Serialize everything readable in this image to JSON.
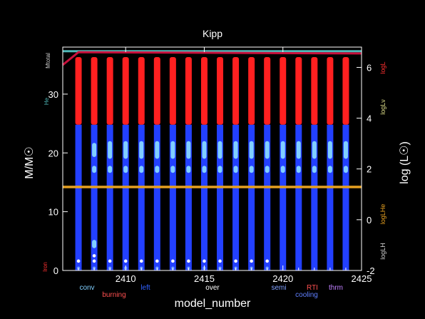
{
  "chart_data": {
    "type": "scatter",
    "title": "Kipp",
    "xlabel": "model_number",
    "ylabel_left": "M/M☉",
    "ylabel_right": "log (L☉)",
    "xlim": [
      2406,
      2425
    ],
    "ylim_left": [
      0,
      38
    ],
    "ylim_right": [
      -2,
      6.8
    ],
    "x_ticks": [
      2410,
      2415,
      2420,
      2425
    ],
    "y_ticks_left": [
      0,
      10,
      20,
      30
    ],
    "y_ticks_right": [
      -2,
      0,
      2,
      4,
      6
    ],
    "grid": false,
    "models": [
      2407,
      2408,
      2409,
      2410,
      2411,
      2412,
      2413,
      2414,
      2415,
      2416,
      2417,
      2418,
      2419,
      2420,
      2421,
      2422,
      2423,
      2424
    ],
    "mass_total": 37.3,
    "m_he_core": 36.8,
    "m_star_top": 36.3,
    "burning_bottom": 24.8,
    "conv_zone": [
      15.8,
      24.8
    ],
    "he_core_mass_line": 14.2,
    "series": [
      {
        "name": "logL",
        "color": "#c8103c",
        "x": [
          2406,
          2407,
          2425
        ],
        "y": [
          6.1,
          6.6,
          6.55
        ]
      },
      {
        "name": "logL_H",
        "color": "#e6a020",
        "x": [
          2406,
          2425
        ],
        "y": [
          1.43,
          1.43
        ]
      }
    ],
    "right_labels": [
      "logL",
      "logLν",
      "logLHe",
      "logLH"
    ],
    "left_labels": [
      "Mtotal",
      "He",
      "Iron"
    ],
    "legend": [
      "conv",
      "burning",
      "left",
      "over",
      "semi",
      "RTI",
      "cooling",
      "thrm"
    ],
    "colors": {
      "background": "#000000",
      "burning": "#ff2020",
      "convective": "#2340ff",
      "semiconv": "#80cfff",
      "logL": "#c8103c",
      "he_line": "#e6a020",
      "cyan_line": "#4fb8b8"
    }
  }
}
